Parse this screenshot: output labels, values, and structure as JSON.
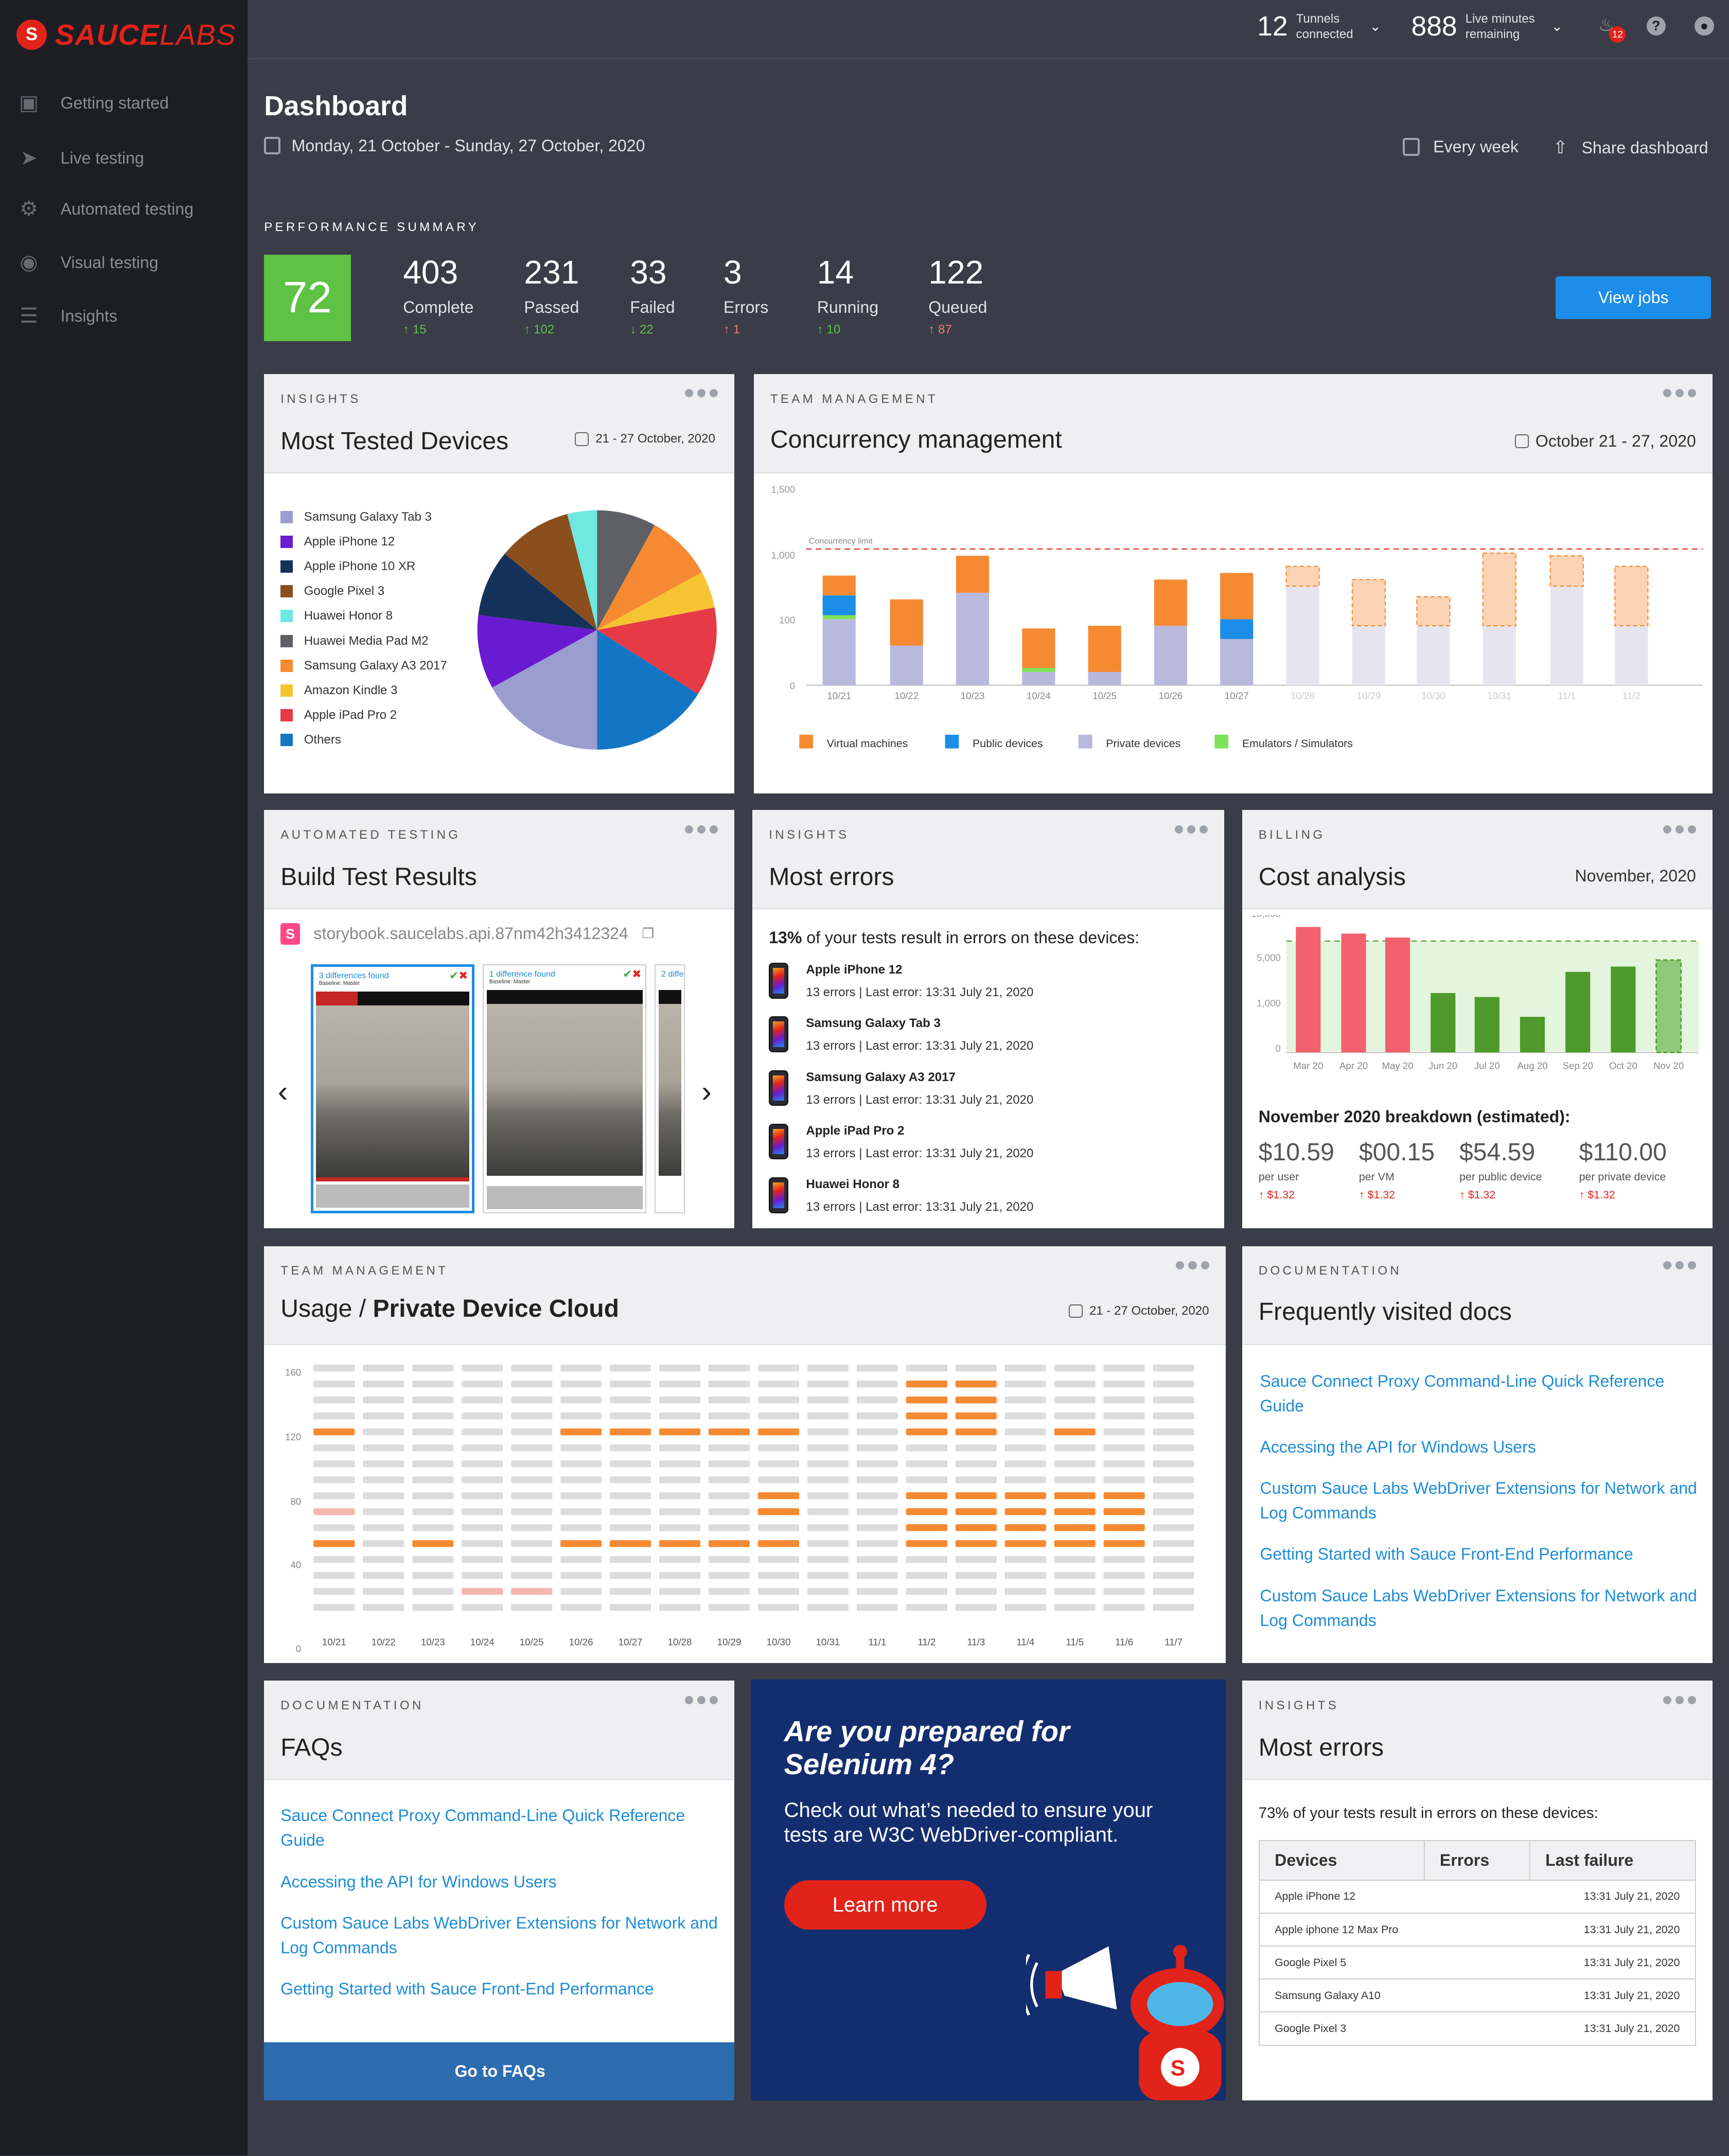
{
  "brand": {
    "name_a": "SAUCE",
    "name_b": "LABS"
  },
  "nav": [
    "Getting started",
    "Live testing",
    "Automated testing",
    "Visual testing",
    "Insights"
  ],
  "top": {
    "tunnels_num": "12",
    "tunnels_l1": "Tunnels",
    "tunnels_l2": "connected",
    "minutes_num": "888",
    "minutes_l1": "Live minutes",
    "minutes_l2": "remaining",
    "notif": "12"
  },
  "header": {
    "title": "Dashboard",
    "dates": "Monday, 21 October - Sunday, 27 October, 2020",
    "every_week": "Every week",
    "share": "Share dashboard"
  },
  "perf": {
    "label": "PERFORMANCE SUMMARY",
    "score": "72",
    "view_jobs": "View jobs",
    "stats": [
      {
        "value": "403",
        "label": "Complete",
        "delta": "15",
        "dir": "up",
        "color": "green"
      },
      {
        "value": "231",
        "label": "Passed",
        "delta": "102",
        "dir": "up",
        "color": "green"
      },
      {
        "value": "33",
        "label": "Failed",
        "delta": "22",
        "dir": "down",
        "color": "green"
      },
      {
        "value": "3",
        "label": "Errors",
        "delta": "1",
        "dir": "up",
        "color": "red"
      },
      {
        "value": "14",
        "label": "Running",
        "delta": "10",
        "dir": "up",
        "color": "green"
      },
      {
        "value": "122",
        "label": "Queued",
        "delta": "87",
        "dir": "up",
        "color": "red"
      }
    ]
  },
  "devices": {
    "eyebrow": "INSIGHTS",
    "title": "Most Tested Devices",
    "date": "21 - 27 October, 2020"
  },
  "concurrency": {
    "eyebrow": "TEAM MANAGEMENT",
    "title": "Concurrency management",
    "date": "October 21 - 27, 2020",
    "limit_label": "Concurrency limit"
  },
  "build": {
    "eyebrow": "AUTOMATED TESTING",
    "title": "Build Test Results",
    "repo": "storybook.saucelabs.api.87nm42h3412324",
    "thumbs": [
      {
        "cap": "3 differences found",
        "base": "Baseline: Master"
      },
      {
        "cap": "1 difference found",
        "base": "Baseline: Master"
      },
      {
        "cap": "2 diffe",
        "base": ""
      }
    ]
  },
  "errors1": {
    "eyebrow": "INSIGHTS",
    "title": "Most errors",
    "summary_bold": "13%",
    "summary": " of your tests result in errors on these devices:",
    "items": [
      {
        "name": "Apple iPhone 12",
        "detail": "13 errors  |  Last error: 13:31 July 21, 2020"
      },
      {
        "name": "Samsung Galaxy Tab 3",
        "detail": "13 errors  |  Last error: 13:31 July 21, 2020"
      },
      {
        "name": "Samsung Galaxy A3 2017",
        "detail": "13 errors  |  Last error: 13:31 July 21, 2020"
      },
      {
        "name": "Apple iPad Pro 2",
        "detail": "13 errors  |  Last error: 13:31 July 21, 2020"
      },
      {
        "name": "Huawei Honor 8",
        "detail": "13 errors  |  Last error: 13:31 July 21, 2020"
      }
    ]
  },
  "cost": {
    "eyebrow": "BILLING",
    "title": "Cost analysis",
    "date": "November, 2020",
    "breakdown": "November 2020 breakdown (estimated):",
    "items": [
      {
        "v": "$10.59",
        "u": "per user",
        "d": "$1.32"
      },
      {
        "v": "$00.15",
        "u": "per VM",
        "d": "$1.32"
      },
      {
        "v": "$54.59",
        "u": "per public device",
        "d": "$1.32"
      },
      {
        "v": "$110.00",
        "u": "per private device",
        "d": "$1.32"
      }
    ]
  },
  "usage": {
    "eyebrow": "TEAM MANAGEMENT",
    "title_a": "Usage / ",
    "title_b": "Private Device Cloud",
    "date": "21 - 27 October, 2020"
  },
  "docs": {
    "eyebrow": "DOCUMENTATION",
    "title": "Frequently visited docs",
    "links": [
      "Sauce Connect Proxy Command-Line Quick Reference Guide",
      "Accessing the API for Windows Users",
      "Custom Sauce Labs WebDriver Extensions for Network and Log Commands",
      "Getting Started with Sauce Front-End Performance",
      "Custom Sauce Labs WebDriver Extensions for Network and Log Commands"
    ]
  },
  "faqs": {
    "eyebrow": "DOCUMENTATION",
    "title": "FAQs",
    "button": "Go to FAQs",
    "links": [
      "Sauce Connect Proxy Command-Line Quick Reference Guide",
      "Accessing the API for Windows Users",
      "Custom Sauce Labs WebDriver Extensions for Network and Log Commands",
      "Getting Started with Sauce Front-End Performance"
    ]
  },
  "promo": {
    "title": "Are you prepared for Selenium 4?",
    "body": "Check out what’s needed to ensure your tests are W3C WebDriver-compliant.",
    "button": "Learn more"
  },
  "errors2": {
    "eyebrow": "INSIGHTS",
    "title": "Most errors",
    "summary": "73% of your tests result in errors on these devices:",
    "headers": [
      "Devices",
      "Errors",
      "Last failure"
    ],
    "rows": [
      {
        "device": "Apple iPhone 12",
        "errors": "",
        "last": "13:31 July 21, 2020"
      },
      {
        "device": "Apple iphone 12 Max Pro",
        "errors": "",
        "last": "13:31 July 21, 2020"
      },
      {
        "device": "Google Pixel 5",
        "errors": "",
        "last": "13:31 July 21, 2020"
      },
      {
        "device": "Samsung Galaxy A10",
        "errors": "",
        "last": "13:31 July 21, 2020"
      },
      {
        "device": "Google Pixel 3",
        "errors": "",
        "last": "13:31 July 21, 2020"
      }
    ]
  },
  "chart_data": [
    {
      "type": "pie",
      "title": "Most Tested Devices",
      "labels": [
        "Samsung Galaxy Tab 3",
        "Apple iPhone 12",
        "Apple iPhone 10 XR",
        "Google Pixel 3",
        "Huawei Honor 8",
        "Huawei Media Pad M2",
        "Samsung Galaxy A3 2017",
        "Amazon Kindle 3",
        "Apple iPad Pro 2",
        "Others"
      ],
      "colors": [
        "#9b9ccf",
        "#6a1bd1",
        "#14315a",
        "#8b4f1e",
        "#6ee8e0",
        "#5f5f66",
        "#f58a32",
        "#f7c431",
        "#e63a47",
        "#1276c5"
      ],
      "values": [
        17,
        10,
        9,
        10,
        4,
        8,
        9,
        5,
        12,
        16
      ]
    },
    {
      "type": "bar",
      "title": "Concurrency management",
      "stacked": true,
      "categories": [
        "10/21",
        "10/22",
        "10/23",
        "10/24",
        "10/25",
        "10/26",
        "10/27",
        "10/28",
        "10/29",
        "10/30",
        "10/31",
        "11/1",
        "11/2"
      ],
      "y_ticks": [
        "0",
        "100",
        "1,000",
        "1,500"
      ],
      "series": [
        {
          "name": "Private devices",
          "color": "#b9b8dd",
          "values": [
            5,
            3,
            7,
            1,
            1,
            4.5,
            3.5,
            7.5,
            4.5,
            4.5,
            4.5,
            7.5,
            4.5
          ]
        },
        {
          "name": "Emulators / Simulators",
          "color": "#7ee35a",
          "values": [
            0.3,
            0,
            0,
            0.3,
            0,
            0,
            0,
            0,
            0,
            0,
            0,
            0,
            0
          ]
        },
        {
          "name": "Public devices",
          "color": "#1c8de8",
          "values": [
            1.5,
            0,
            0,
            0,
            0,
            0,
            1.5,
            0,
            0,
            0,
            0,
            0,
            0
          ]
        },
        {
          "name": "Virtual machines",
          "color": "#f58a32",
          "values": [
            1.5,
            3.5,
            2.8,
            3,
            3.5,
            3.5,
            3.5,
            1.5,
            3.5,
            2.2,
            5.5,
            2.3,
            4.5
          ]
        }
      ],
      "projected_from": "10/28",
      "limit": "Concurrency limit"
    },
    {
      "type": "bar",
      "title": "Cost analysis",
      "categories": [
        "Mar 20",
        "Apr 20",
        "May 20",
        "Jun 20",
        "Jul 20",
        "Aug 20",
        "Sep 20",
        "Oct 20",
        "Nov 20"
      ],
      "y_ticks": [
        "0",
        "1,000",
        "5,000",
        "10,000"
      ],
      "values": [
        9.5,
        9,
        8.7,
        4.5,
        4.2,
        2.7,
        6.1,
        6.5,
        7
      ],
      "colors": [
        "#f3616e",
        "#f3616e",
        "#f3616e",
        "#4e9a2a",
        "#4e9a2a",
        "#4e9a2a",
        "#4e9a2a",
        "#4e9a2a",
        "#8fc97a"
      ]
    },
    {
      "type": "heatmap",
      "title": "Usage / Private Device Cloud",
      "columns": [
        "10/21",
        "10/22",
        "10/23",
        "10/24",
        "10/25",
        "10/26",
        "10/27",
        "10/28",
        "10/29",
        "10/30",
        "10/31",
        "11/1",
        "11/2",
        "11/3",
        "11/4",
        "11/5",
        "11/6",
        "11/7"
      ],
      "y_ticks": [
        "0",
        "40",
        "80",
        "120",
        "160"
      ],
      "rows": 16,
      "highlight": {
        "10/21": [
          4,
          11
        ],
        "10/23": [
          4
        ],
        "10/24": [
          1
        ],
        "10/25": [
          1
        ],
        "10/26": [
          4,
          11
        ],
        "10/27": [
          4,
          11
        ],
        "10/28": [
          4,
          11
        ],
        "10/29": [
          4,
          11
        ],
        "10/30": [
          4,
          6,
          7,
          11
        ],
        "11/2": [
          4,
          5,
          6,
          7,
          11,
          12,
          13,
          14
        ],
        "11/3": [
          4,
          5,
          6,
          7,
          11,
          12,
          13,
          14
        ],
        "11/4": [
          4,
          5,
          6,
          7
        ],
        "11/5": [
          4,
          5,
          6,
          7,
          11
        ],
        "11/6": [
          4,
          5,
          6,
          7
        ]
      },
      "light": {
        "10/21": [
          6
        ],
        "10/24": [
          1
        ],
        "10/25": [
          1
        ]
      }
    }
  ]
}
